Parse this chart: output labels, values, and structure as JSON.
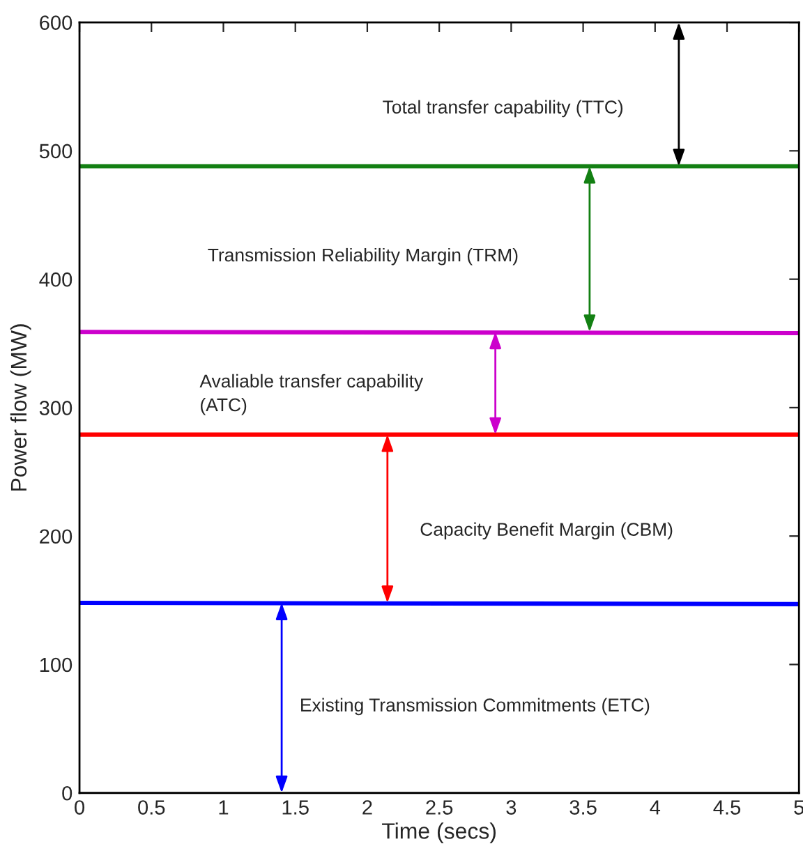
{
  "chart_data": {
    "type": "line",
    "xlabel": "Time (secs)",
    "ylabel": "Power flow (MW)",
    "xlim": [
      0,
      5
    ],
    "ylim": [
      0,
      600
    ],
    "xticks": [
      0,
      0.5,
      1,
      1.5,
      2,
      2.5,
      3,
      3.5,
      4,
      4.5,
      5
    ],
    "yticks": [
      0,
      100,
      200,
      300,
      400,
      500,
      600
    ],
    "grid": false,
    "marker": "none",
    "line_style": "solid",
    "x": [
      0,
      5
    ],
    "series": [
      {
        "color": "#0000ff",
        "values": [
          148,
          147
        ]
      },
      {
        "color": "#ff0000",
        "values": [
          279,
          279
        ]
      },
      {
        "color": "#cc00cc",
        "values": [
          359,
          358
        ]
      },
      {
        "color": "#138013",
        "values": [
          488,
          488
        ]
      }
    ],
    "annotations": [
      "Existing Transmission Commitments (ETC)",
      "Capacity Benefit Margin (CBM)",
      "Avaliable transfer capability\n(ATC)",
      "Transmission Reliability Margin (TRM)",
      "Total transfer capability (TTC)"
    ]
  }
}
